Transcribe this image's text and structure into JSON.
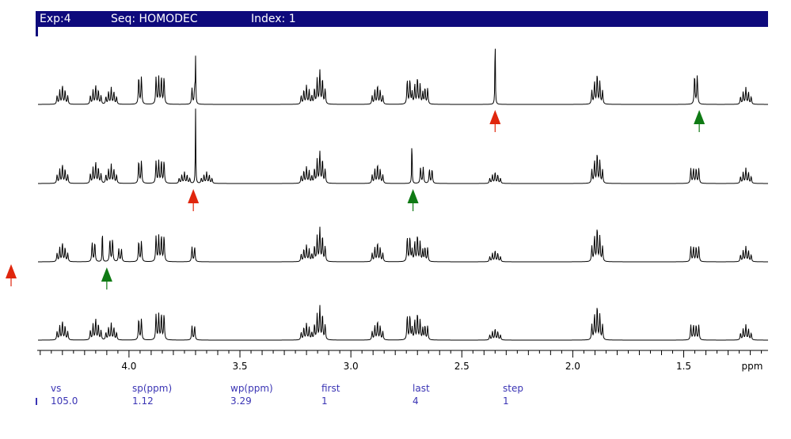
{
  "header": {
    "exp": "Exp:4",
    "seq": "Seq: HOMODEC",
    "index": "Index: 1",
    "bg_color": "#0e0a7c"
  },
  "params": [
    {
      "label": "vs",
      "value": "105.0"
    },
    {
      "label": "sp(ppm)",
      "value": "1.12"
    },
    {
      "label": "wp(ppm)",
      "value": "3.29"
    },
    {
      "label": "first",
      "value": "1"
    },
    {
      "label": "last",
      "value": "4"
    },
    {
      "label": "step",
      "value": "1"
    }
  ],
  "chart_data": {
    "type": "line",
    "title": "",
    "xlabel": "ppm",
    "ylabel": "",
    "x_reversed": true,
    "xlim": [
      1.12,
      4.41
    ],
    "x_ticks": [
      4.0,
      3.5,
      3.0,
      2.5,
      2.0,
      1.5
    ],
    "tick_labels": [
      "4.0",
      "3.5",
      "3.0",
      "2.5",
      "2.0",
      "1.5"
    ],
    "grid": false,
    "line_color": "#000000",
    "series": [
      {
        "peaks": [
          {
            "ppm": 4.3,
            "h": 0.25,
            "type": "m"
          },
          {
            "ppm": 4.15,
            "h": 0.25,
            "type": "m"
          },
          {
            "ppm": 4.08,
            "h": 0.22,
            "type": "m"
          },
          {
            "ppm": 3.95,
            "h": 0.43,
            "type": "d"
          },
          {
            "ppm": 3.86,
            "h": 0.4,
            "type": "dd"
          },
          {
            "ppm": 3.71,
            "h": 0.25,
            "type": "d"
          },
          {
            "ppm": 3.7,
            "h": 0.6,
            "type": "s"
          },
          {
            "ppm": 3.2,
            "h": 0.25,
            "type": "m"
          },
          {
            "ppm": 3.14,
            "h": 0.45,
            "type": "m"
          },
          {
            "ppm": 2.88,
            "h": 0.25,
            "type": "m"
          },
          {
            "ppm": 2.74,
            "h": 0.38,
            "type": "d"
          },
          {
            "ppm": 2.7,
            "h": 0.35,
            "type": "m"
          },
          {
            "ppm": 2.66,
            "h": 0.25,
            "type": "d"
          },
          {
            "ppm": 2.35,
            "h": 1.0,
            "type": "s"
          },
          {
            "ppm": 1.89,
            "h": 0.4,
            "type": "m"
          },
          {
            "ppm": 1.445,
            "h": 0.45,
            "type": "d"
          },
          {
            "ppm": 1.22,
            "h": 0.22,
            "type": "m"
          }
        ]
      },
      {
        "peaks": [
          {
            "ppm": 4.3,
            "h": 0.25,
            "type": "m"
          },
          {
            "ppm": 4.15,
            "h": 0.28,
            "type": "m"
          },
          {
            "ppm": 4.08,
            "h": 0.25,
            "type": "m"
          },
          {
            "ppm": 3.95,
            "h": 0.35,
            "type": "d"
          },
          {
            "ppm": 3.86,
            "h": 0.33,
            "type": "dd"
          },
          {
            "ppm": 3.75,
            "h": 0.15,
            "type": "m"
          },
          {
            "ppm": 3.7,
            "h": 1.0,
            "type": "s"
          },
          {
            "ppm": 3.65,
            "h": 0.15,
            "type": "m"
          },
          {
            "ppm": 3.2,
            "h": 0.22,
            "type": "m"
          },
          {
            "ppm": 3.14,
            "h": 0.42,
            "type": "m"
          },
          {
            "ppm": 2.88,
            "h": 0.25,
            "type": "m"
          },
          {
            "ppm": 2.725,
            "h": 0.65,
            "type": "s"
          },
          {
            "ppm": 2.68,
            "h": 0.25,
            "type": "d"
          },
          {
            "ppm": 2.64,
            "h": 0.22,
            "type": "d"
          },
          {
            "ppm": 2.35,
            "h": 0.15,
            "type": "m"
          },
          {
            "ppm": 1.89,
            "h": 0.4,
            "type": "m"
          },
          {
            "ppm": 1.45,
            "h": 0.22,
            "type": "dd"
          },
          {
            "ppm": 1.22,
            "h": 0.2,
            "type": "m"
          }
        ]
      },
      {
        "peaks": [
          {
            "ppm": 4.3,
            "h": 0.25,
            "type": "m"
          },
          {
            "ppm": 4.16,
            "h": 0.3,
            "type": "d"
          },
          {
            "ppm": 4.12,
            "h": 0.5,
            "type": "s"
          },
          {
            "ppm": 4.08,
            "h": 0.35,
            "type": "d"
          },
          {
            "ppm": 4.04,
            "h": 0.2,
            "type": "d"
          },
          {
            "ppm": 3.95,
            "h": 0.32,
            "type": "d"
          },
          {
            "ppm": 3.86,
            "h": 0.38,
            "type": "dd"
          },
          {
            "ppm": 3.71,
            "h": 0.23,
            "type": "d"
          },
          {
            "ppm": 3.2,
            "h": 0.22,
            "type": "m"
          },
          {
            "ppm": 3.14,
            "h": 0.45,
            "type": "m"
          },
          {
            "ppm": 2.88,
            "h": 0.25,
            "type": "m"
          },
          {
            "ppm": 2.74,
            "h": 0.38,
            "type": "d"
          },
          {
            "ppm": 2.7,
            "h": 0.35,
            "type": "m"
          },
          {
            "ppm": 2.66,
            "h": 0.22,
            "type": "d"
          },
          {
            "ppm": 2.35,
            "h": 0.15,
            "type": "m"
          },
          {
            "ppm": 1.89,
            "h": 0.45,
            "type": "m"
          },
          {
            "ppm": 1.45,
            "h": 0.22,
            "type": "dd"
          },
          {
            "ppm": 1.22,
            "h": 0.2,
            "type": "m"
          }
        ]
      },
      {
        "peaks": [
          {
            "ppm": 4.3,
            "h": 0.25,
            "type": "m"
          },
          {
            "ppm": 4.15,
            "h": 0.28,
            "type": "m"
          },
          {
            "ppm": 4.08,
            "h": 0.22,
            "type": "m"
          },
          {
            "ppm": 3.95,
            "h": 0.33,
            "type": "d"
          },
          {
            "ppm": 3.86,
            "h": 0.38,
            "type": "dd"
          },
          {
            "ppm": 3.71,
            "h": 0.22,
            "type": "d"
          },
          {
            "ppm": 3.2,
            "h": 0.22,
            "type": "m"
          },
          {
            "ppm": 3.14,
            "h": 0.45,
            "type": "m"
          },
          {
            "ppm": 2.88,
            "h": 0.25,
            "type": "m"
          },
          {
            "ppm": 2.74,
            "h": 0.38,
            "type": "d"
          },
          {
            "ppm": 2.7,
            "h": 0.35,
            "type": "m"
          },
          {
            "ppm": 2.66,
            "h": 0.22,
            "type": "d"
          },
          {
            "ppm": 2.35,
            "h": 0.15,
            "type": "m"
          },
          {
            "ppm": 1.89,
            "h": 0.45,
            "type": "m"
          },
          {
            "ppm": 1.45,
            "h": 0.22,
            "type": "dd"
          },
          {
            "ppm": 1.22,
            "h": 0.2,
            "type": "m"
          }
        ]
      }
    ],
    "markers": [
      {
        "spectrum": 0,
        "ppm": 2.35,
        "color": "#e0260d"
      },
      {
        "spectrum": 0,
        "ppm": 1.43,
        "color": "#0f7a14"
      },
      {
        "spectrum": 1,
        "ppm": 3.71,
        "color": "#e0260d"
      },
      {
        "spectrum": 1,
        "ppm": 2.72,
        "color": "#0f7a14"
      },
      {
        "spectrum": 2,
        "ppm": 4.1,
        "color": "#0f7a14"
      },
      {
        "spectrum": 2,
        "side": "left",
        "color": "#e0260d"
      }
    ]
  }
}
